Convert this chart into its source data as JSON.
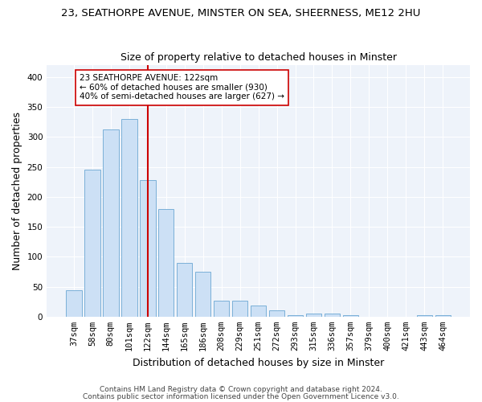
{
  "title1": "23, SEATHORPE AVENUE, MINSTER ON SEA, SHEERNESS, ME12 2HU",
  "title2": "Size of property relative to detached houses in Minster",
  "xlabel": "Distribution of detached houses by size in Minster",
  "ylabel": "Number of detached properties",
  "categories": [
    "37sqm",
    "58sqm",
    "80sqm",
    "101sqm",
    "122sqm",
    "144sqm",
    "165sqm",
    "186sqm",
    "208sqm",
    "229sqm",
    "251sqm",
    "272sqm",
    "293sqm",
    "315sqm",
    "336sqm",
    "357sqm",
    "379sqm",
    "400sqm",
    "421sqm",
    "443sqm",
    "464sqm"
  ],
  "values": [
    44,
    245,
    313,
    330,
    228,
    180,
    90,
    75,
    27,
    27,
    18,
    10,
    3,
    5,
    5,
    3,
    0,
    0,
    0,
    3,
    3
  ],
  "bar_color": "#cce0f5",
  "bar_edge_color": "#7ab0d8",
  "vline_color": "#cc0000",
  "annotation_text": "23 SEATHORPE AVENUE: 122sqm\n← 60% of detached houses are smaller (930)\n40% of semi-detached houses are larger (627) →",
  "annotation_box_color": "white",
  "annotation_box_edge": "#cc0000",
  "ylim": [
    0,
    420
  ],
  "yticks": [
    0,
    50,
    100,
    150,
    200,
    250,
    300,
    350,
    400
  ],
  "footnote1": "Contains HM Land Registry data © Crown copyright and database right 2024.",
  "footnote2": "Contains public sector information licensed under the Open Government Licence v3.0.",
  "title1_fontsize": 9.5,
  "title2_fontsize": 9,
  "axis_label_fontsize": 9,
  "tick_fontsize": 7.5,
  "annotation_fontsize": 7.5,
  "footnote_fontsize": 6.5,
  "bg_color": "#eef3fa"
}
